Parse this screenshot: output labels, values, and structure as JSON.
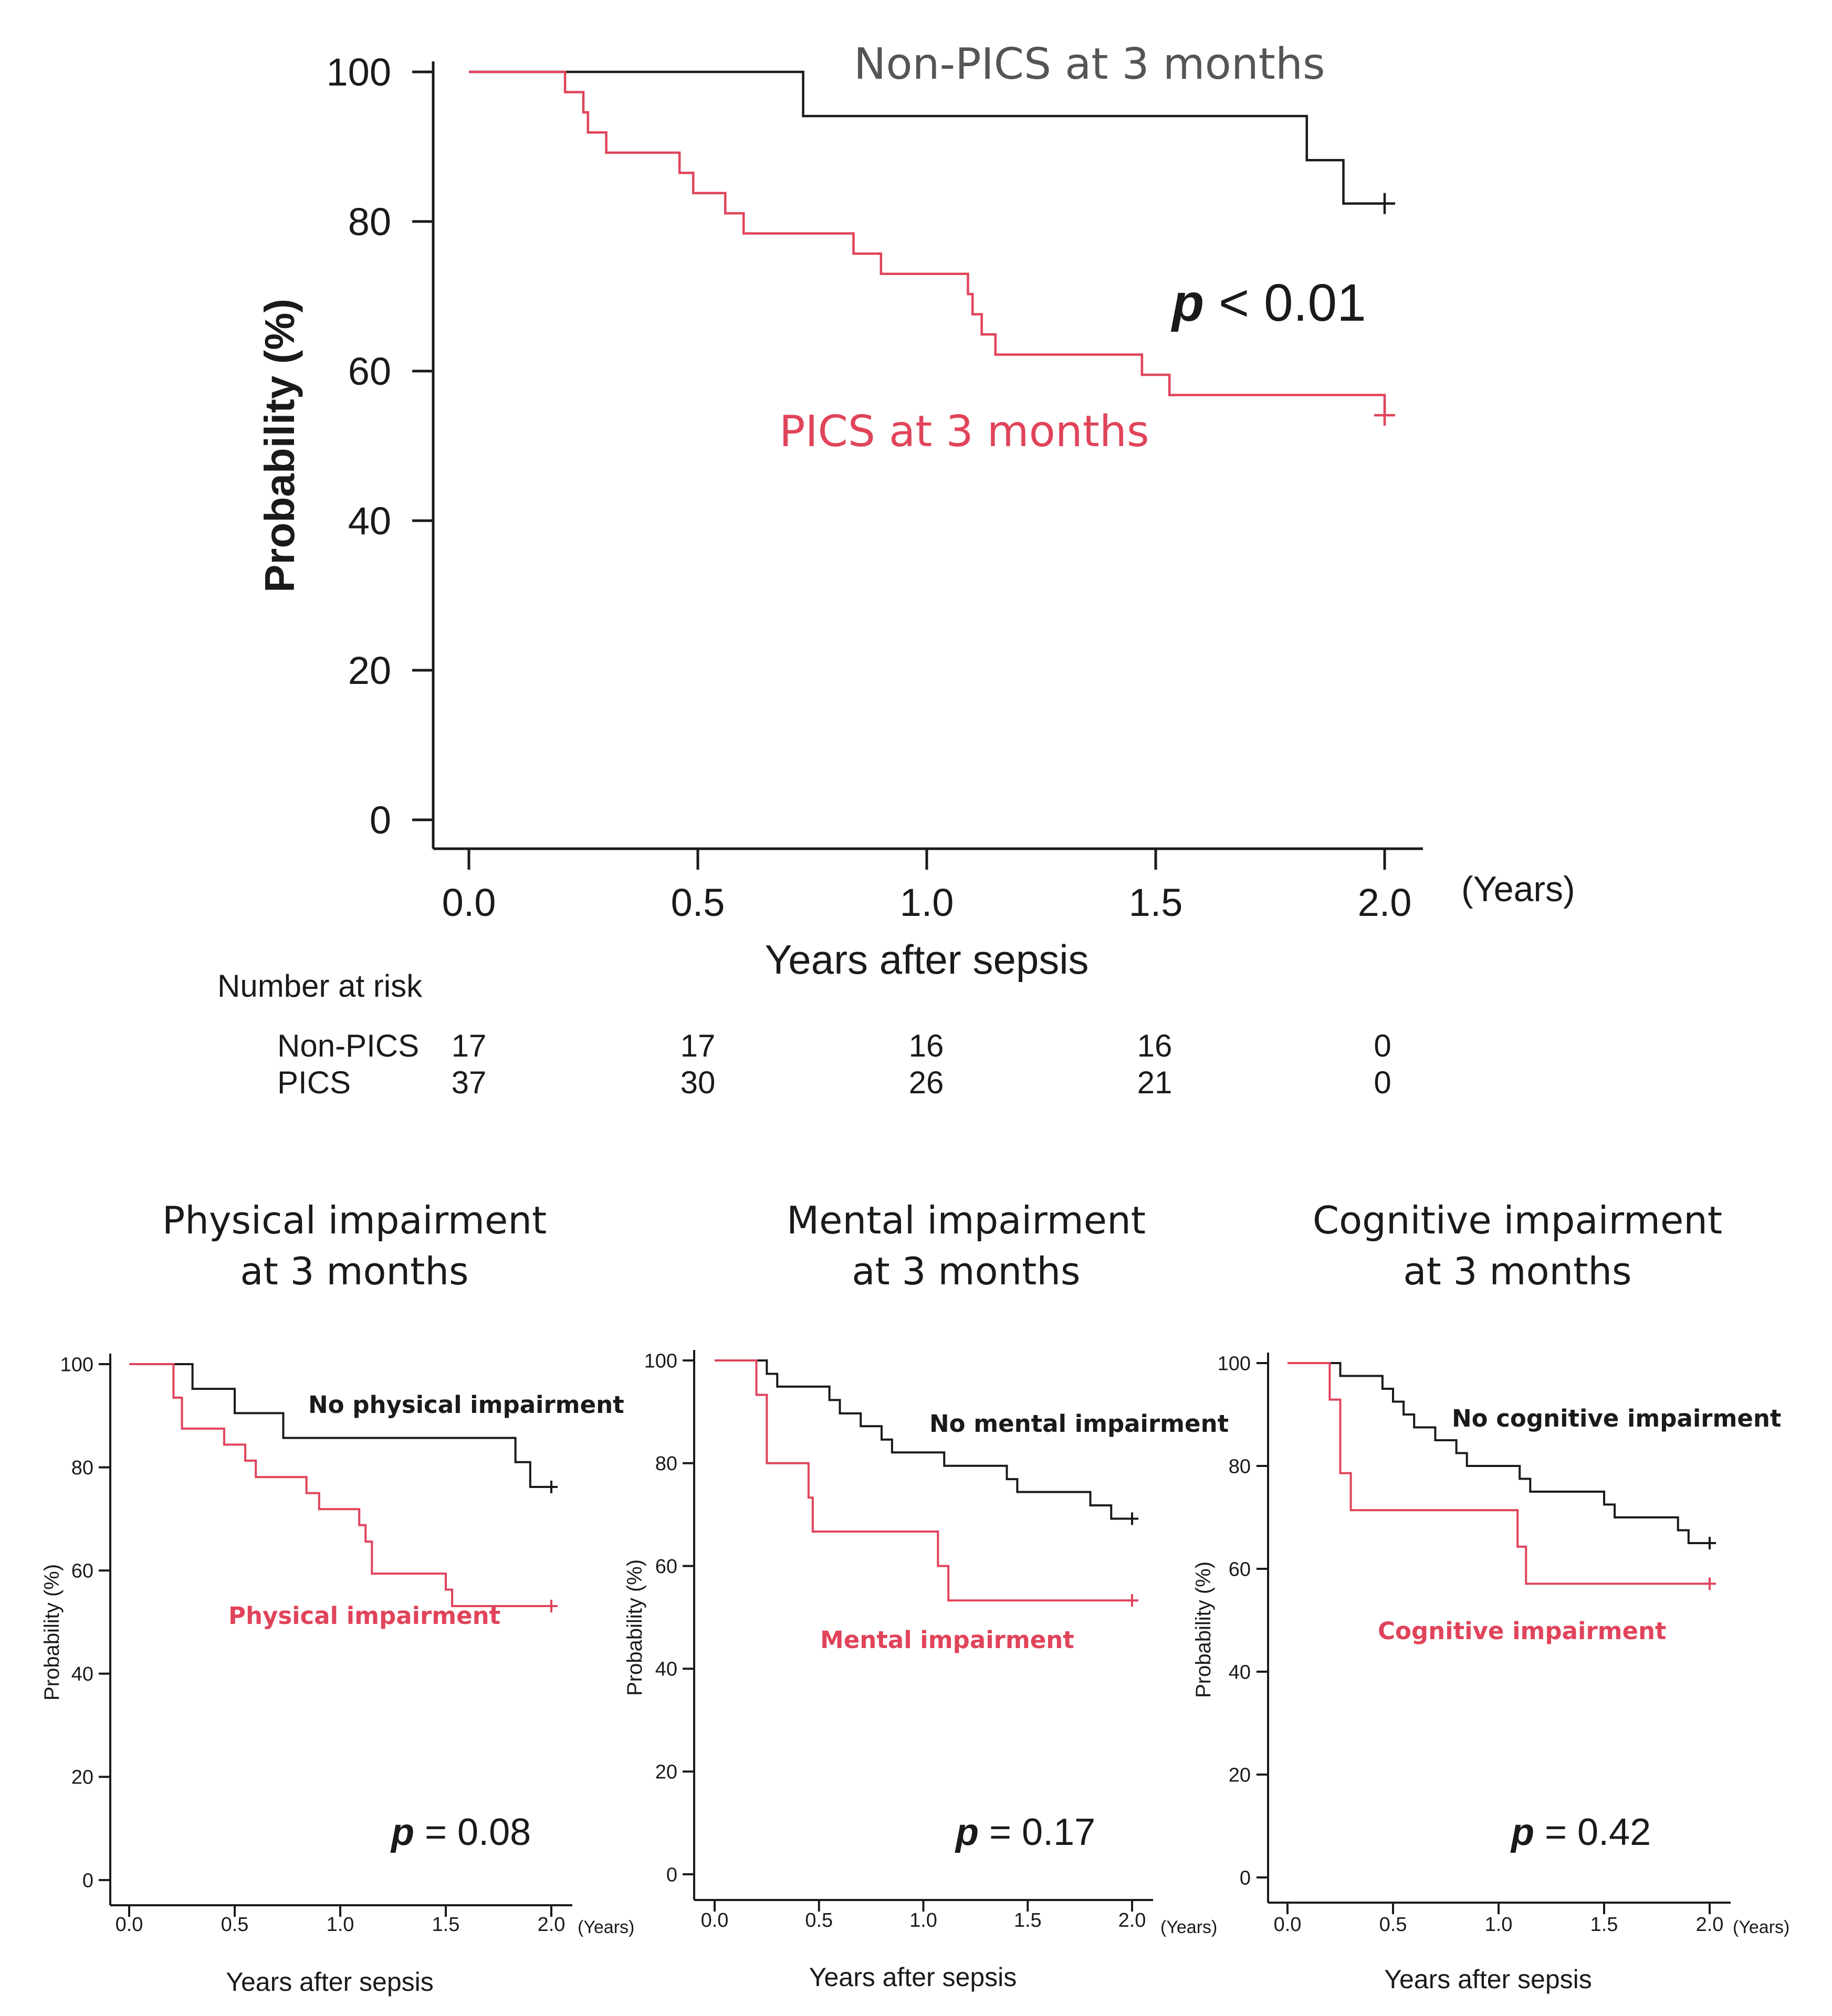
{
  "colors": {
    "black": "#1a1a1a",
    "red": "#e0445a",
    "gray": "#555555"
  },
  "chart_data": [
    {
      "id": "main",
      "type": "line",
      "step": true,
      "xlabel": "Years after sepsis",
      "ylabel": "Probability (%)",
      "x_unit": "(Years)",
      "xlim": [
        0,
        2.0
      ],
      "ylim": [
        0,
        100
      ],
      "xticks": [
        "0.0",
        "0.5",
        "1.0",
        "1.5",
        "2.0"
      ],
      "yticks": [
        "0",
        "20",
        "40",
        "60",
        "80",
        "100"
      ],
      "p_value": {
        "p": "p",
        "rest": " < 0.01"
      },
      "series": [
        {
          "name": "Non-PICS at 3 months",
          "color": "black",
          "x": [
            0,
            0.73,
            1.83,
            1.91,
            2.0
          ],
          "y": [
            100,
            94.1,
            88.2,
            82.4,
            82.4
          ]
        },
        {
          "name": "PICS at 3 months",
          "color": "red",
          "x": [
            0,
            0.21,
            0.25,
            0.26,
            0.3,
            0.46,
            0.49,
            0.56,
            0.6,
            0.84,
            0.9,
            1.09,
            1.1,
            1.12,
            1.15,
            1.47,
            1.53,
            2.0
          ],
          "y": [
            100,
            97.3,
            94.6,
            91.9,
            89.2,
            86.5,
            83.8,
            81.1,
            78.4,
            75.7,
            73.0,
            70.3,
            67.6,
            64.9,
            62.2,
            59.5,
            56.8,
            54.1
          ]
        }
      ],
      "risk_table": {
        "header": "Number at risk",
        "rows": [
          {
            "label": "Non-PICS",
            "counts": [
              "17",
              "17",
              "16",
              "16",
              "0"
            ]
          },
          {
            "label": "PICS",
            "counts": [
              "37",
              "30",
              "26",
              "21",
              "0"
            ]
          }
        ]
      }
    },
    {
      "id": "physical",
      "type": "line",
      "step": true,
      "title": [
        "Physical impairment",
        "at 3 months"
      ],
      "xlabel": "Years after sepsis",
      "ylabel": "Probability (%)",
      "x_unit": "(Years)",
      "xlim": [
        0,
        2.0
      ],
      "ylim": [
        0,
        100
      ],
      "xticks": [
        "0.0",
        "0.5",
        "1.0",
        "1.5",
        "2.0"
      ],
      "yticks": [
        "0",
        "20",
        "40",
        "60",
        "80",
        "100"
      ],
      "p_value": {
        "p": "p",
        "rest": " = 0.08"
      },
      "series": [
        {
          "name": "No physical impairment",
          "color": "black",
          "x": [
            0,
            0.3,
            0.5,
            0.73,
            1.83,
            1.9,
            2.0
          ],
          "y": [
            100,
            95.2,
            90.5,
            85.7,
            81.0,
            76.2,
            76.2
          ]
        },
        {
          "name": "Physical impairment",
          "color": "red",
          "x": [
            0,
            0.21,
            0.25,
            0.45,
            0.55,
            0.6,
            0.84,
            0.9,
            1.09,
            1.12,
            1.15,
            1.5,
            1.53,
            2.0
          ],
          "y": [
            100,
            93.5,
            87.5,
            84.4,
            81.3,
            78.1,
            75.0,
            71.9,
            68.8,
            65.6,
            59.4,
            56.3,
            53.1,
            53.1
          ]
        }
      ]
    },
    {
      "id": "mental",
      "type": "line",
      "step": true,
      "title": [
        "Mental impairment",
        "at 3 months"
      ],
      "xlabel": "Years after sepsis",
      "ylabel": "Probability (%)",
      "x_unit": "(Years)",
      "xlim": [
        0,
        2.0
      ],
      "ylim": [
        0,
        100
      ],
      "xticks": [
        "0.0",
        "0.5",
        "1.0",
        "1.5",
        "2.0"
      ],
      "yticks": [
        "0",
        "20",
        "40",
        "60",
        "80",
        "100"
      ],
      "p_value": {
        "p": "p",
        "rest": " = 0.17"
      },
      "series": [
        {
          "name": "No mental impairment",
          "color": "black",
          "x": [
            0,
            0.25,
            0.3,
            0.55,
            0.6,
            0.7,
            0.8,
            0.85,
            1.0,
            1.1,
            1.4,
            1.45,
            1.8,
            1.9,
            2.0
          ],
          "y": [
            100,
            97.4,
            94.9,
            92.3,
            89.7,
            87.2,
            84.6,
            82.1,
            82.1,
            79.5,
            76.9,
            74.4,
            71.8,
            69.2,
            69.2
          ]
        },
        {
          "name": "Mental impairment",
          "color": "red",
          "x": [
            0,
            0.2,
            0.25,
            0.45,
            0.47,
            1.07,
            1.12,
            2.0
          ],
          "y": [
            100,
            93.3,
            80.0,
            73.3,
            66.7,
            60.0,
            53.3,
            53.3
          ]
        }
      ]
    },
    {
      "id": "cognitive",
      "type": "line",
      "step": true,
      "title": [
        "Cognitive impairment",
        "at 3 months"
      ],
      "xlabel": "Years after sepsis",
      "ylabel": "Probability (%)",
      "x_unit": "(Years)",
      "xlim": [
        0,
        2.0
      ],
      "ylim": [
        0,
        100
      ],
      "xticks": [
        "0.0",
        "0.5",
        "1.0",
        "1.5",
        "2.0"
      ],
      "yticks": [
        "0",
        "20",
        "40",
        "60",
        "80",
        "100"
      ],
      "p_value": {
        "p": "p",
        "rest": " = 0.42"
      },
      "series": [
        {
          "name": "No cognitive impairment",
          "color": "black",
          "x": [
            0,
            0.25,
            0.45,
            0.5,
            0.55,
            0.6,
            0.7,
            0.8,
            0.85,
            0.95,
            1.1,
            1.15,
            1.5,
            1.55,
            1.85,
            1.9,
            2.0
          ],
          "y": [
            100,
            97.5,
            95.0,
            92.5,
            90.0,
            87.5,
            85.0,
            82.5,
            80.0,
            80.0,
            77.5,
            75.0,
            72.5,
            70.0,
            67.5,
            65.0,
            65.0
          ]
        },
        {
          "name": "Cognitive impairment",
          "color": "red",
          "x": [
            0,
            0.2,
            0.25,
            0.3,
            1.09,
            1.13,
            2.0
          ],
          "y": [
            100,
            92.9,
            78.6,
            71.4,
            64.3,
            57.1,
            57.1
          ]
        }
      ]
    }
  ]
}
